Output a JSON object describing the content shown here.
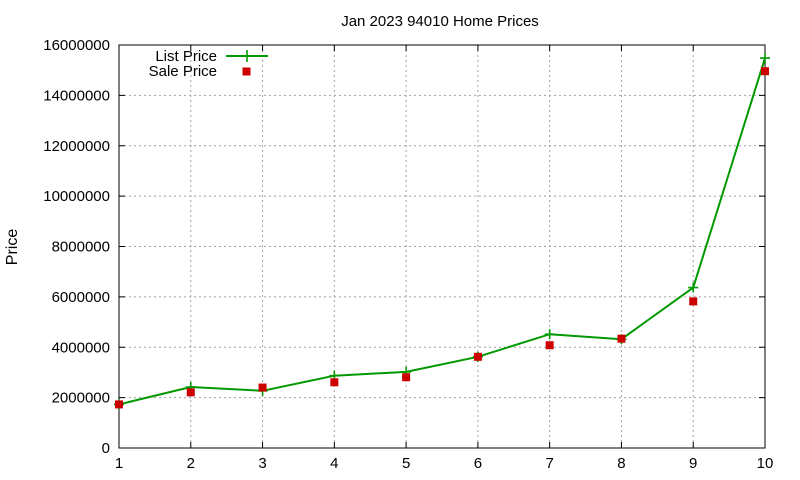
{
  "chart_data": {
    "type": "line",
    "title": "Jan 2023 94010 Home Prices",
    "xlabel": "",
    "ylabel": "Price",
    "x": [
      1,
      2,
      3,
      4,
      5,
      6,
      7,
      8,
      9,
      10
    ],
    "xlim": [
      1,
      10
    ],
    "ylim": [
      0,
      16000000
    ],
    "xticks": [
      "1",
      "2",
      "3",
      "4",
      "5",
      "6",
      "7",
      "8",
      "9",
      "10"
    ],
    "yticks": [
      "0",
      "2000000",
      "4000000",
      "6000000",
      "8000000",
      "10000000",
      "12000000",
      "14000000",
      "16000000"
    ],
    "grid": true,
    "legend_position": "top-left",
    "series": [
      {
        "name": "List Price",
        "style": "line-with-plus-markers",
        "color": "#009900",
        "values": [
          1730000,
          2420000,
          2270000,
          2870000,
          3020000,
          3620000,
          4520000,
          4320000,
          6370000,
          15480000
        ]
      },
      {
        "name": "Sale Price",
        "style": "square-markers",
        "color": "#cc0000",
        "values": [
          1730000,
          2210000,
          2400000,
          2610000,
          2810000,
          3620000,
          4080000,
          4340000,
          5820000,
          14960000
        ]
      }
    ]
  }
}
